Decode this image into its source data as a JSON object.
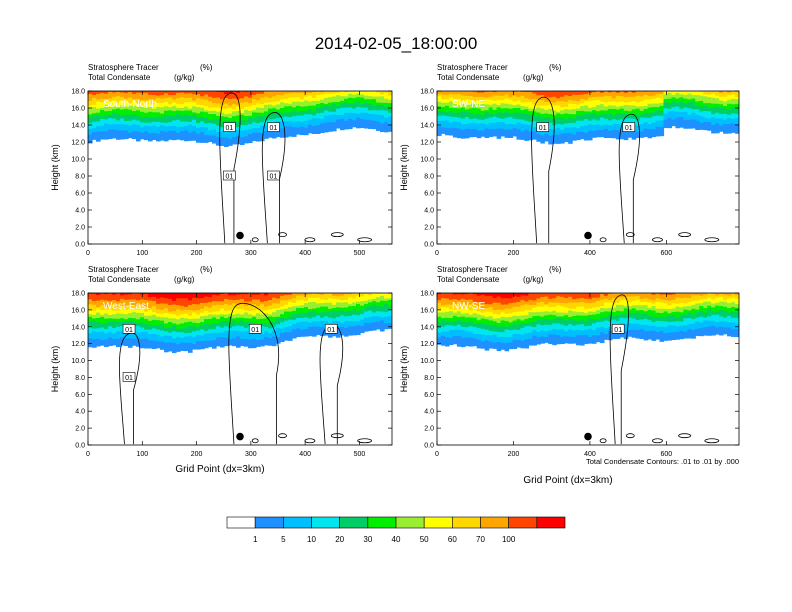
{
  "title": "2014-02-05_18:00:00",
  "footnote": "Total Condensate Contours: .01 to .01 by .000",
  "colors": {
    "scale": [
      "#ffffff",
      "#1e90ff",
      "#00bfff",
      "#00e5ee",
      "#00cd66",
      "#00ee00",
      "#9aee32",
      "#ffff00",
      "#ffd700",
      "#ffa500",
      "#ff4500",
      "#ff0000"
    ],
    "contour": "#000000",
    "marker": "#000000"
  },
  "chart_data": [
    {
      "type": "heatmap",
      "panel_label": "South-North",
      "title_left_1": "Stratosphere Tracer",
      "title_right_1": "(%)",
      "title_left_2": "Total Condensate",
      "title_right_2": "(g/kg)",
      "ylabel": "Height (km)",
      "xlabel": "",
      "xlim": [
        0,
        560
      ],
      "ylim": [
        0,
        18
      ],
      "xticks": [
        0,
        100,
        200,
        300,
        400,
        500
      ],
      "yticks": [
        "0.0",
        "2.0",
        "4.0",
        "6.0",
        "8.0",
        "10.0",
        "12.0",
        "14.0",
        "16.0",
        "18.0"
      ],
      "contour_level": 0.01,
      "contour_labels": [
        "01",
        "01",
        "01",
        "01"
      ],
      "marker_x": 280,
      "marker_y": 1.0
    },
    {
      "type": "heatmap",
      "panel_label": "SW-NE",
      "title_left_1": "Stratosphere Tracer",
      "title_right_1": "(%)",
      "title_left_2": "Total Condensate",
      "title_right_2": "(g/kg)",
      "ylabel": "Height (km)",
      "xlabel": "",
      "xlim": [
        0,
        790
      ],
      "ylim": [
        0,
        18
      ],
      "xticks": [
        0,
        200,
        400,
        600
      ],
      "yticks": [
        "0.0",
        "2.0",
        "4.0",
        "6.0",
        "8.0",
        "10.0",
        "12.0",
        "14.0",
        "16.0",
        "18.0"
      ],
      "contour_level": 0.01,
      "contour_labels": [
        "01",
        "01"
      ],
      "marker_x": 395,
      "marker_y": 1.0
    },
    {
      "type": "heatmap",
      "panel_label": "West-East",
      "title_left_1": "Stratosphere Tracer",
      "title_right_1": "(%)",
      "title_left_2": "Total Condensate",
      "title_right_2": "(g/kg)",
      "ylabel": "Height (km)",
      "xlabel": "Grid Point (dx=3km)",
      "xlim": [
        0,
        560
      ],
      "ylim": [
        0,
        18
      ],
      "xticks": [
        0,
        100,
        200,
        300,
        400,
        500
      ],
      "yticks": [
        "0.0",
        "2.0",
        "4.0",
        "6.0",
        "8.0",
        "10.0",
        "12.0",
        "14.0",
        "16.0",
        "18.0"
      ],
      "contour_level": 0.01,
      "contour_labels": [
        "01",
        "01",
        "01",
        "01"
      ],
      "marker_x": 280,
      "marker_y": 1.0
    },
    {
      "type": "heatmap",
      "panel_label": "NW-SE",
      "title_left_1": "Stratosphere Tracer",
      "title_right_1": "(%)",
      "title_left_2": "Total Condensate",
      "title_right_2": "(g/kg)",
      "ylabel": "Height (km)",
      "xlabel": "Grid Point (dx=3km)",
      "xlim": [
        0,
        790
      ],
      "ylim": [
        0,
        18
      ],
      "xticks": [
        0,
        200,
        400,
        600
      ],
      "yticks": [
        "0.0",
        "2.0",
        "4.0",
        "6.0",
        "8.0",
        "10.0",
        "12.0",
        "14.0",
        "16.0",
        "18.0"
      ],
      "contour_level": 0.01,
      "contour_labels": [
        "01"
      ],
      "marker_x": 395,
      "marker_y": 1.0
    }
  ],
  "colorbar": {
    "labels": [
      "1",
      "5",
      "10",
      "20",
      "30",
      "40",
      "50",
      "60",
      "70",
      "100"
    ]
  }
}
